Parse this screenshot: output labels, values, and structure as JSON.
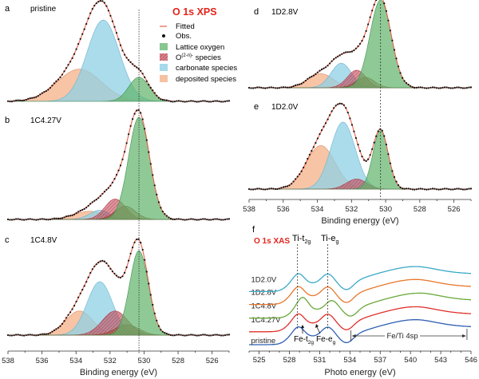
{
  "chart_data": [
    {
      "id": "a",
      "type": "area",
      "panel_label": "a",
      "sample": "pristine",
      "xlabel": "",
      "xlim": [
        538,
        525
      ],
      "x_ticks": [],
      "reference_line_ev": 530.3,
      "peaks": [
        {
          "component": "deposited",
          "center": 533.8,
          "height": 0.36,
          "width": 1.3
        },
        {
          "component": "carbonate",
          "center": 532.4,
          "height": 0.91,
          "width": 0.95
        },
        {
          "component": "lattice",
          "center": 530.3,
          "height": 0.27,
          "width": 0.6
        }
      ]
    },
    {
      "id": "b",
      "type": "area",
      "panel_label": "b",
      "sample": "1C4.27V",
      "xlabel": "",
      "xlim": [
        538,
        525
      ],
      "x_ticks": [],
      "reference_line_ev": 530.3,
      "peaks": [
        {
          "component": "deposited",
          "center": 533.2,
          "height": 0.08,
          "width": 0.9
        },
        {
          "component": "carbonate",
          "center": 532.6,
          "height": 0.09,
          "width": 0.6
        },
        {
          "component": "o_species",
          "center": 531.7,
          "height": 0.2,
          "width": 0.6
        },
        {
          "component": "o_species_2",
          "center": 531.1,
          "height": 0.13,
          "width": 0.6
        },
        {
          "component": "lattice",
          "center": 530.3,
          "height": 1.0,
          "width": 0.62
        }
      ]
    },
    {
      "id": "c",
      "type": "area",
      "panel_label": "c",
      "sample": "1C4.8V",
      "xlabel": "Binding energy (eV)",
      "xlim": [
        538,
        525
      ],
      "x_ticks": [
        538,
        536,
        534,
        532,
        530,
        528,
        526
      ],
      "reference_line_ev": 530.3,
      "peaks": [
        {
          "component": "deposited",
          "center": 533.8,
          "height": 0.28,
          "width": 0.8
        },
        {
          "component": "carbonate",
          "center": 532.6,
          "height": 0.62,
          "width": 0.75
        },
        {
          "component": "o_species",
          "center": 531.7,
          "height": 0.28,
          "width": 0.75
        },
        {
          "component": "o_species_2",
          "center": 531.0,
          "height": 0.12,
          "width": 0.7
        },
        {
          "component": "lattice",
          "center": 530.3,
          "height": 0.98,
          "width": 0.55
        }
      ]
    },
    {
      "id": "d",
      "type": "area",
      "panel_label": "d",
      "sample": "1D2.8V",
      "xlabel": "",
      "xlim": [
        538,
        525
      ],
      "x_ticks": [],
      "reference_line_ev": 530.3,
      "peaks": [
        {
          "component": "deposited",
          "center": 533.8,
          "height": 0.16,
          "width": 0.75
        },
        {
          "component": "carbonate",
          "center": 532.6,
          "height": 0.28,
          "width": 0.6
        },
        {
          "component": "o_species",
          "center": 531.7,
          "height": 0.2,
          "width": 0.55
        },
        {
          "component": "o_species_2",
          "center": 531.2,
          "height": 0.12,
          "width": 0.55
        },
        {
          "component": "lattice",
          "center": 530.3,
          "height": 1.0,
          "width": 0.62
        }
      ]
    },
    {
      "id": "e",
      "type": "area",
      "panel_label": "e",
      "sample": "1D2.0V",
      "xlabel": "Binding energy (eV)",
      "xlim": [
        538,
        525
      ],
      "x_ticks": [
        538,
        536,
        534,
        532,
        530,
        528,
        526
      ],
      "reference_line_ev": 530.3,
      "peaks": [
        {
          "component": "deposited",
          "center": 533.8,
          "height": 0.52,
          "width": 0.85
        },
        {
          "component": "carbonate",
          "center": 532.5,
          "height": 0.8,
          "width": 0.72
        },
        {
          "component": "o_species",
          "center": 531.7,
          "height": 0.12,
          "width": 0.6
        },
        {
          "component": "lattice",
          "center": 530.3,
          "height": 0.7,
          "width": 0.45
        }
      ]
    },
    {
      "id": "f",
      "type": "line",
      "panel_label": "f",
      "title": "O 1s XAS",
      "xlabel": "Photo energy (eV)",
      "xlim": [
        524,
        546
      ],
      "x_ticks": [
        525,
        528,
        531,
        534,
        537,
        540,
        543,
        546
      ],
      "reference_lines_ev": [
        528.8,
        531.8
      ],
      "peak_labels": {
        "ti_t2g": "Ti-t",
        "ti_t2g_sub": "2g",
        "ti_eg": "Ti-e",
        "ti_eg_sub": "g",
        "fe_t2g": "Fe-t",
        "fe_t2g_sub": "2g",
        "fe_eg": "Fe-e",
        "fe_eg_sub": "g"
      },
      "span_annotation": {
        "label": "Fe/Ti 4sp",
        "from_ev": 534.1,
        "to_ev": 545.6
      },
      "series": [
        {
          "name": "pristine",
          "color": "#2f5fb0",
          "offset": 0.0
        },
        {
          "name": "1C4.27V",
          "color": "#e0302a",
          "offset": 0.9
        },
        {
          "name": "1C4.8V",
          "color": "#6aa83a",
          "offset": 1.85
        },
        {
          "name": "1D2.8V",
          "color": "#e8772d",
          "offset": 2.8
        },
        {
          "name": "1D2.0V",
          "color": "#3aa9c8",
          "offset": 3.7
        }
      ]
    }
  ],
  "legend": {
    "title": "O 1s XPS",
    "items": [
      {
        "key": "fitted",
        "label": "Fitted"
      },
      {
        "key": "obs",
        "label": "Obs."
      },
      {
        "key": "lattice",
        "label": "Lattice oxygen"
      },
      {
        "key": "o_species",
        "label_main": "O",
        "label_sup": "(2-n)-",
        "label_rest": " species"
      },
      {
        "key": "carbonate",
        "label": "carbonate species"
      },
      {
        "key": "deposited",
        "label": "deposited species"
      }
    ]
  },
  "colors": {
    "title_red": "#e3241b",
    "lattice": "#5fb36a",
    "o_species": "#cf4a5a",
    "carbonate": "#8fd0e6",
    "deposited": "#f2a677",
    "fitted": "#e8604a",
    "obs": "#111111"
  }
}
